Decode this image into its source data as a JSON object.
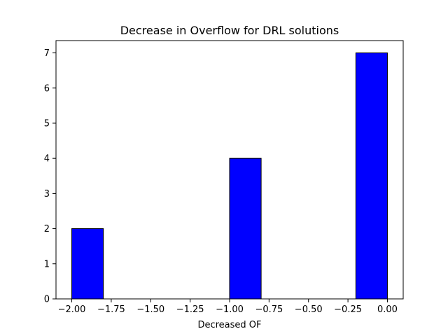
{
  "chart_data": {
    "type": "bar",
    "title": "Decrease in Overflow for DRL solutions",
    "xlabel": "Decreased OF",
    "ylabel": "",
    "bins": [
      {
        "start": -2.0,
        "end": -1.8,
        "count": 2
      },
      {
        "start": -1.8,
        "end": -1.6,
        "count": 0
      },
      {
        "start": -1.6,
        "end": -1.4,
        "count": 0
      },
      {
        "start": -1.4,
        "end": -1.2,
        "count": 0
      },
      {
        "start": -1.2,
        "end": -1.0,
        "count": 0
      },
      {
        "start": -1.0,
        "end": -0.8,
        "count": 4
      },
      {
        "start": -0.8,
        "end": -0.6,
        "count": 0
      },
      {
        "start": -0.6,
        "end": -0.4,
        "count": 0
      },
      {
        "start": -0.4,
        "end": -0.2,
        "count": 0
      },
      {
        "start": -0.2,
        "end": 0.0,
        "count": 7
      }
    ],
    "xlim": [
      -2.1,
      0.1
    ],
    "ylim": [
      0,
      7.35
    ],
    "xticks": [
      -2.0,
      -1.75,
      -1.5,
      -1.25,
      -1.0,
      -0.75,
      -0.5,
      -0.25,
      0.0
    ],
    "xtick_labels": [
      "−2.00",
      "−1.75",
      "−1.50",
      "−1.25",
      "−1.00",
      "−0.75",
      "−0.50",
      "−0.25",
      "0.00"
    ],
    "yticks": [
      0,
      1,
      2,
      3,
      4,
      5,
      6,
      7
    ],
    "ytick_labels": [
      "0",
      "1",
      "2",
      "3",
      "4",
      "5",
      "6",
      "7"
    ],
    "grid": false,
    "bar_color": "#0000ff",
    "edge_color": "#000000"
  }
}
